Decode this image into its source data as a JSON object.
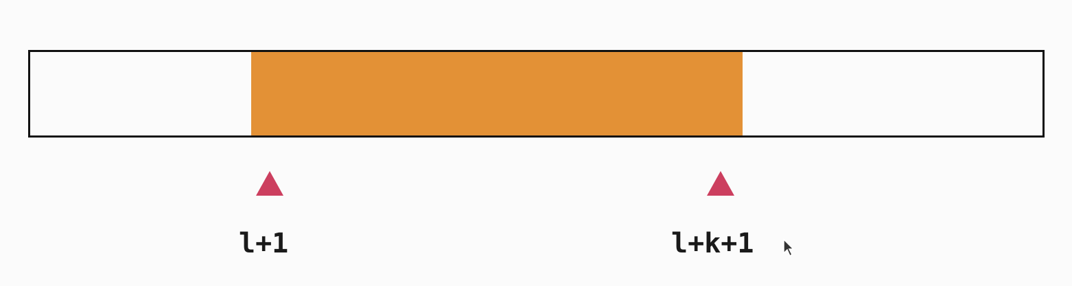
{
  "diagram": {
    "segment": {
      "color": "#e39136"
    },
    "pointers": [
      {
        "label": "l+1",
        "color": "#cc3f5f",
        "icon": "triangle-up-icon"
      },
      {
        "label": "l+k+1",
        "color": "#cc3f5f",
        "icon": "triangle-up-icon"
      }
    ]
  }
}
